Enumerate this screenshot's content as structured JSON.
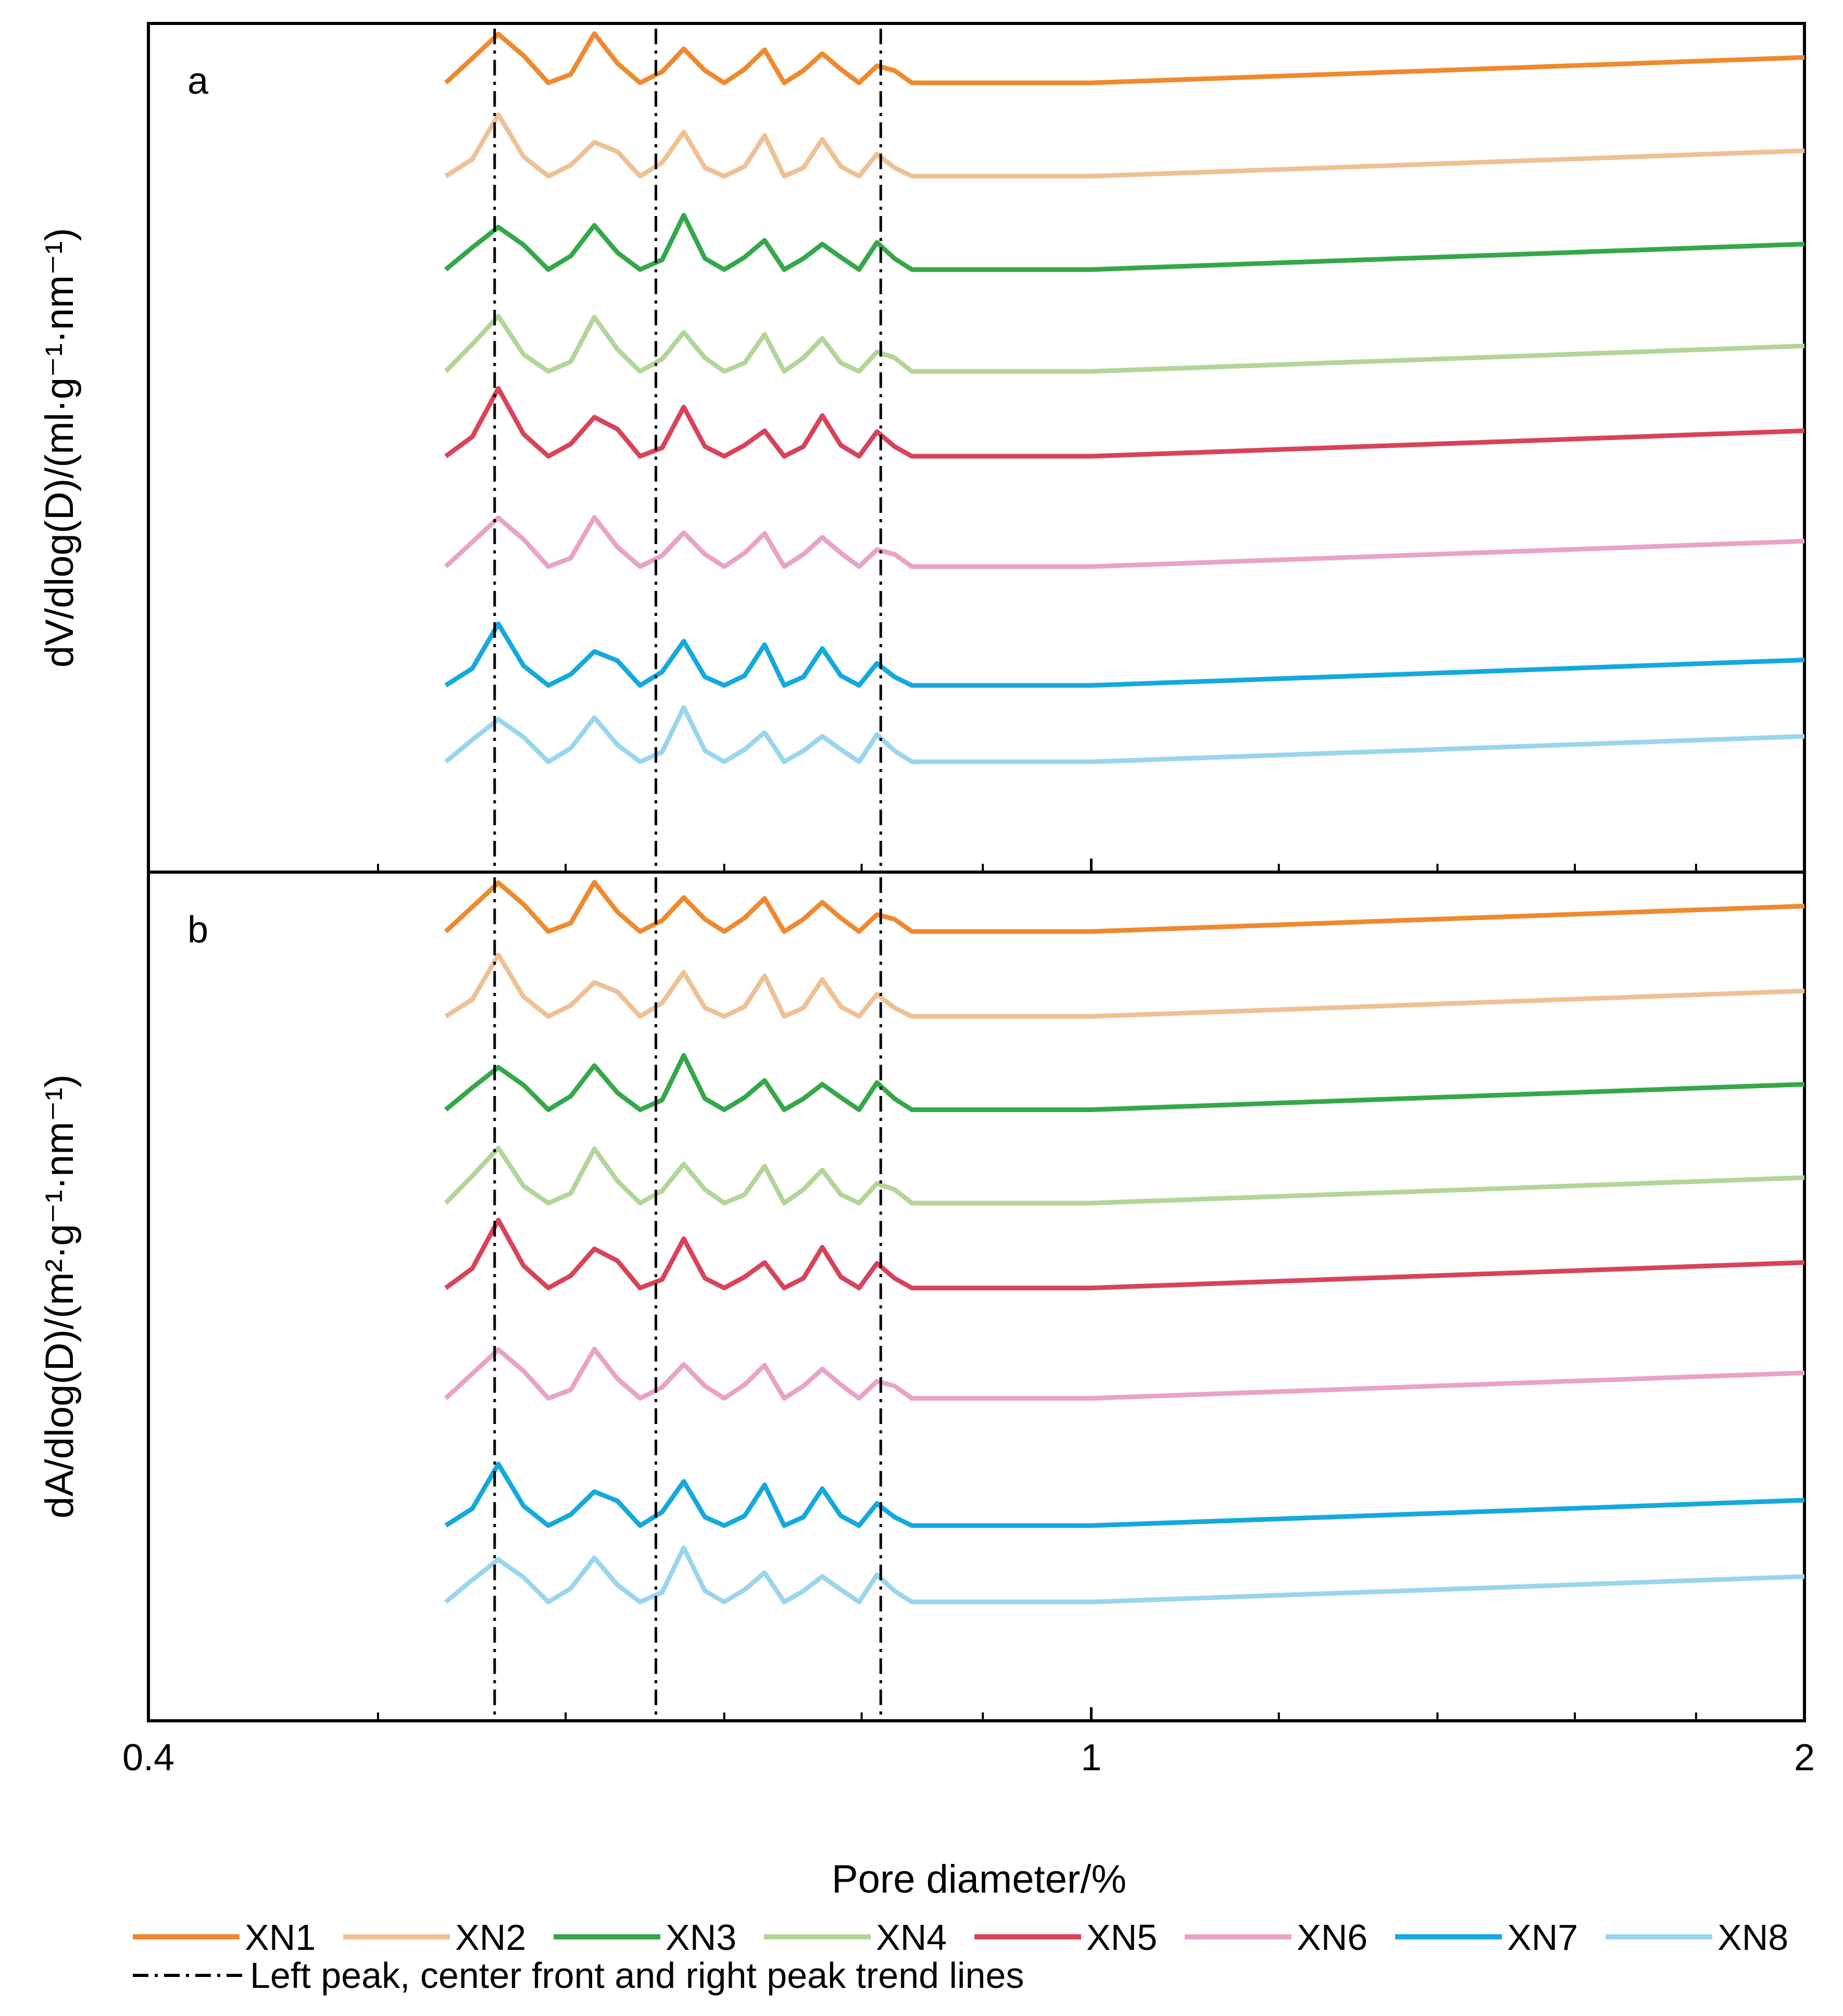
{
  "chart_data": {
    "type": "line",
    "xlabel": "Pore diameter/%",
    "xscale": "log",
    "xlim": [
      0.4,
      2
    ],
    "x_tick_labels": [
      {
        "value": 0.4,
        "label": "0.4"
      },
      {
        "value": 1,
        "label": "1"
      },
      {
        "value": 2,
        "label": "2"
      }
    ],
    "x_minor_ticks": [
      0.5,
      0.6,
      0.7,
      0.8,
      0.9,
      1.2,
      1.4,
      1.6,
      1.8
    ],
    "colors": {
      "XN1": "#f0892e",
      "XN2": "#eec195",
      "XN3": "#34a849",
      "XN4": "#b3d598",
      "XN5": "#d8435a",
      "XN6": "#e8a3c5",
      "XN7": "#14a9de",
      "XN8": "#9ad5ee",
      "trend": "#000000"
    },
    "series_names": [
      "XN1",
      "XN2",
      "XN3",
      "XN4",
      "XN5",
      "XN6",
      "XN7",
      "XN8"
    ],
    "trend_label": "Left peak, center front and right peak trend lines",
    "panels": [
      {
        "id": "a",
        "letter": "a",
        "ylabel": "dV/dlog(D)/(ml·g⁻¹·nm⁻¹)",
        "series": [
          {
            "name": "XN1",
            "x": [
              0.534,
              0.548,
              0.562,
              0.576,
              0.59,
              0.603,
              0.617,
              0.631,
              0.645,
              0.659,
              0.673,
              0.687,
              0.7,
              0.714,
              0.728,
              0.742,
              0.756,
              0.77,
              0.784,
              0.798,
              0.812,
              0.826,
              0.84,
              0.854,
              0.868,
              0.882,
              1.0,
              1.2,
              1.5,
              1.8,
              2.0
            ],
            "y": [
              0.0,
              0.0,
              0.0,
              0.0,
              0.0,
              0.0,
              0.0,
              0.0,
              0.0,
              0.0,
              0.0,
              0.0,
              0.0,
              0.0,
              0.0,
              0.0,
              0.0,
              0.0,
              0.0,
              0.0,
              0.0,
              0.0,
              0.0,
              0.0,
              0.0,
              0.0,
              0.0,
              0.0,
              0.0,
              0.0,
              0.0
            ]
          },
          {
            "name": "XN2",
            "x": [],
            "y": []
          }
        ],
        "baselines": [],
        "trend_lines": []
      },
      {
        "id": "b",
        "letter": "b",
        "ylabel": "dA/dlog(D)/(m²·g⁻¹·nm⁻¹)",
        "series": [],
        "baselines": [],
        "trend_lines": []
      }
    ]
  }
}
